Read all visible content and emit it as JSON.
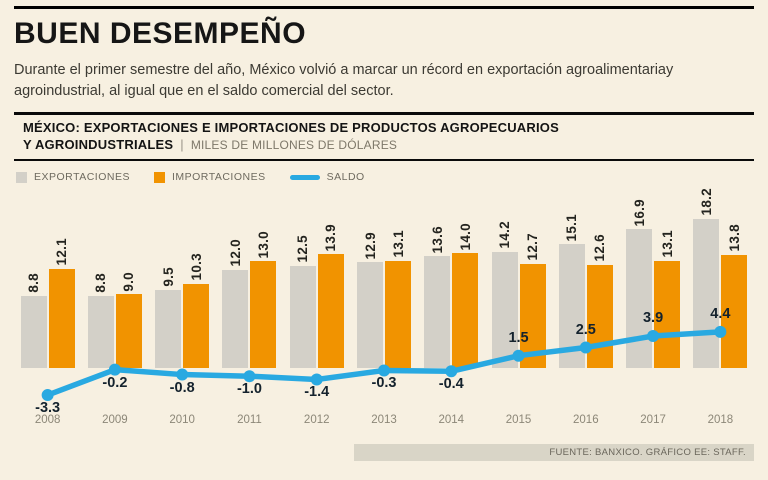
{
  "page": {
    "title": "BUEN DESEMPEÑO",
    "subtitle": "Durante el primer semestre del año, México volvió a marcar un récord en exportación agroalimentariay agroindustrial, al igual que en el saldo comercial del sector.",
    "source": "FUENTE: BANXICO.  GRÁFICO EE: STAFF."
  },
  "chart_header": {
    "title_line1": "MÉXICO: EXPORTACIONES E IMPORTACIONES DE PRODUCTOS AGROPECUARIOS",
    "title_line2_bold": "Y AGROINDUSTRIALES",
    "separator": "|",
    "units": "MILES DE MILLONES DE DÓLARES"
  },
  "legend": [
    {
      "label": "EXPORTACIONES",
      "color": "#d3d0c8"
    },
    {
      "label": "IMPORTACIONES",
      "color": "#f19300"
    },
    {
      "label": "SALDO",
      "color": "#29a9e1"
    }
  ],
  "colors": {
    "background": "#f7f0e1",
    "exportaciones_bar": "#d3d0c8",
    "importaciones_bar": "#f19300",
    "saldo_line": "#29a9e1",
    "footer_strip": "#d9d5c7"
  },
  "chart_data": {
    "type": "bar",
    "subtype": "grouped-bars-with-line",
    "title": "MÉXICO: EXPORTACIONES E IMPORTACIONES DE PRODUCTOS AGROPECUARIOS Y AGROINDUSTRIALES",
    "units": "MILES DE MILLONES DE DÓLARES",
    "categories": [
      "2008",
      "2009",
      "2010",
      "2011",
      "2012",
      "2013",
      "2014",
      "2015",
      "2016",
      "2017",
      "2018"
    ],
    "series": [
      {
        "name": "EXPORTACIONES",
        "type": "bar",
        "color": "#d3d0c8",
        "values": [
          8.8,
          8.8,
          9.5,
          12.0,
          12.5,
          12.9,
          13.6,
          14.2,
          15.1,
          16.9,
          18.2
        ]
      },
      {
        "name": "IMPORTACIONES",
        "type": "bar",
        "color": "#f19300",
        "values": [
          12.1,
          9.0,
          10.3,
          13.0,
          13.9,
          13.1,
          14.0,
          12.7,
          12.6,
          13.1,
          13.8
        ]
      },
      {
        "name": "SALDO",
        "type": "line",
        "color": "#29a9e1",
        "values": [
          -3.3,
          -0.2,
          -0.8,
          -1.0,
          -1.4,
          -0.3,
          -0.4,
          1.5,
          2.5,
          3.9,
          4.4
        ]
      }
    ],
    "ylim": [
      -4,
      20
    ],
    "grid": false,
    "legend_position": "top-left",
    "value_labels": "rotated-90-above-bars",
    "source": "FUENTE: BANXICO. GRÁFICO EE: STAFF."
  }
}
